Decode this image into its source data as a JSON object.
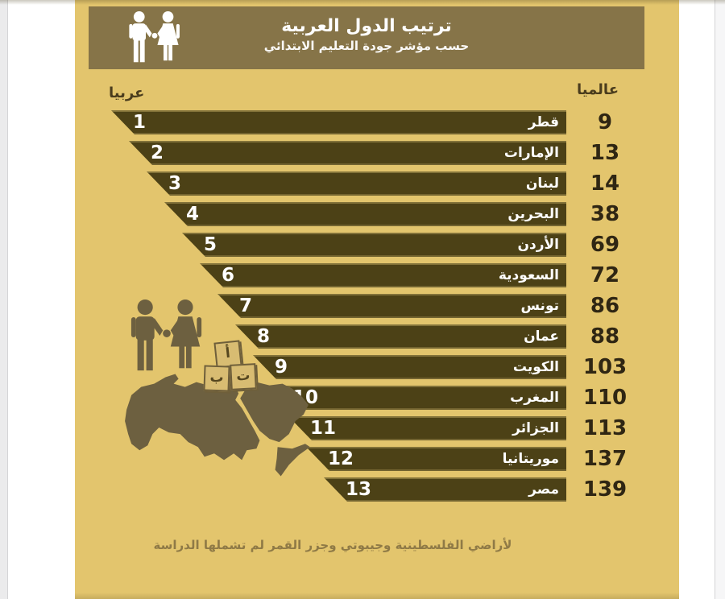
{
  "header": {
    "title": "ترتيب الدول العربية",
    "subtitle": "حسب مؤشر جودة التعليم الابتدائي"
  },
  "column_headers": {
    "arab": "عربيا",
    "global": "عالميا"
  },
  "chart_data": {
    "type": "bar",
    "orientation": "horizontal-rtl-staircase",
    "title": "ترتيب الدول العربية",
    "subtitle": "حسب مؤشر جودة التعليم الابتدائي",
    "categories": [
      "قطر",
      "الإمارات",
      "لبنان",
      "البحرين",
      "الأردن",
      "السعودية",
      "تونس",
      "عمان",
      "الكويت",
      "المغرب",
      "الجزائر",
      "موريتانيا",
      "مصر"
    ],
    "series": [
      {
        "name": "عربيا",
        "values": [
          1,
          2,
          3,
          4,
          5,
          6,
          7,
          8,
          9,
          10,
          11,
          12,
          13
        ]
      },
      {
        "name": "عالميا",
        "values": [
          9,
          13,
          14,
          38,
          69,
          72,
          86,
          88,
          103,
          110,
          113,
          137,
          139
        ]
      }
    ],
    "grid": false,
    "legend_position": "top-corners",
    "note": "لأراضي الفلسطينية وجيبوتي وجزر القمر لم تشملها الدراسة"
  },
  "footer": {
    "note": "لأراضي الفلسطينية وجيبوتي وجزر القمر لم تشملها الدراسة"
  },
  "decor": {
    "alphabet_blocks": [
      "أ",
      "ب",
      "ت"
    ]
  },
  "colors": {
    "background": "#e3c56d",
    "header_box": "#867448",
    "bar": "#4c4116",
    "bar_text": "#ffffff",
    "global_rank_text": "#2f2613",
    "column_header_text": "#4a3c1d",
    "footer_text": "#8f7a46",
    "silhouette": "#6d6040"
  }
}
